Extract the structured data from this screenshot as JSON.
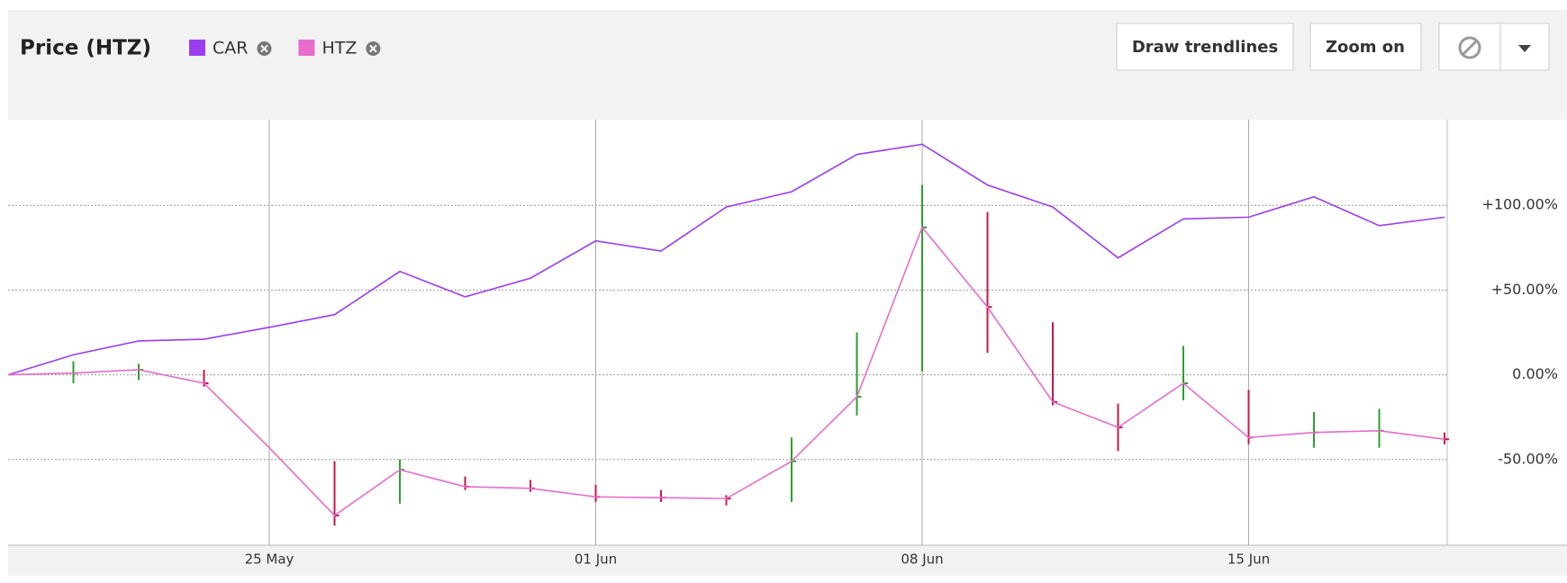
{
  "header": {
    "title": "Price (HTZ)",
    "buttons": [
      "Draw trendlines",
      "Zoom on"
    ]
  },
  "chart_data": {
    "type": "line",
    "categories": [
      null,
      null,
      null,
      null,
      "25 May",
      null,
      null,
      null,
      null,
      "01 Jun",
      null,
      null,
      null,
      null,
      "08 Jun",
      null,
      null,
      null,
      null,
      "15 Jun",
      null,
      null,
      null
    ],
    "series": [
      {
        "name": "CAR",
        "color": "#9b3df0",
        "values": [
          0,
          11.8,
          20,
          21,
          28,
          35.5,
          61,
          46,
          57,
          79,
          73,
          99,
          108,
          130,
          136,
          112,
          99,
          69,
          92,
          93,
          105,
          88,
          93
        ]
      },
      {
        "name": "HTZ",
        "color": "#e86ccc",
        "values": [
          0,
          1,
          3,
          -5,
          -43,
          -83,
          -56,
          -66,
          -67,
          -72,
          -72.5,
          -73,
          -51,
          -13,
          87,
          40,
          -16,
          -31,
          -5,
          -37,
          -34,
          -33,
          -38
        ],
        "high": [
          null,
          8,
          6.5,
          3,
          null,
          -51,
          -50,
          -60,
          -62,
          -65,
          -68,
          -71,
          -37,
          25,
          112,
          96,
          31,
          -17,
          17,
          -9,
          -22,
          -20,
          -34
        ],
        "low": [
          null,
          -5,
          -3,
          -7,
          null,
          -89,
          -76,
          -68,
          -69,
          -75,
          -75,
          -77,
          -75,
          -24,
          2,
          13,
          -18,
          -45,
          -15,
          -41,
          -43,
          -43,
          -41
        ],
        "up_color": "#2e9e2e",
        "down_color": "#c8174a"
      }
    ],
    "ylim": [
      -100,
      150
    ],
    "yticks": [
      {
        "value": -50,
        "label": "-50.00%"
      },
      {
        "value": 0,
        "label": "0.00%"
      },
      {
        "value": 50,
        "label": "+50.00%"
      },
      {
        "value": 100,
        "label": "+100.00%"
      }
    ],
    "grid": true
  }
}
